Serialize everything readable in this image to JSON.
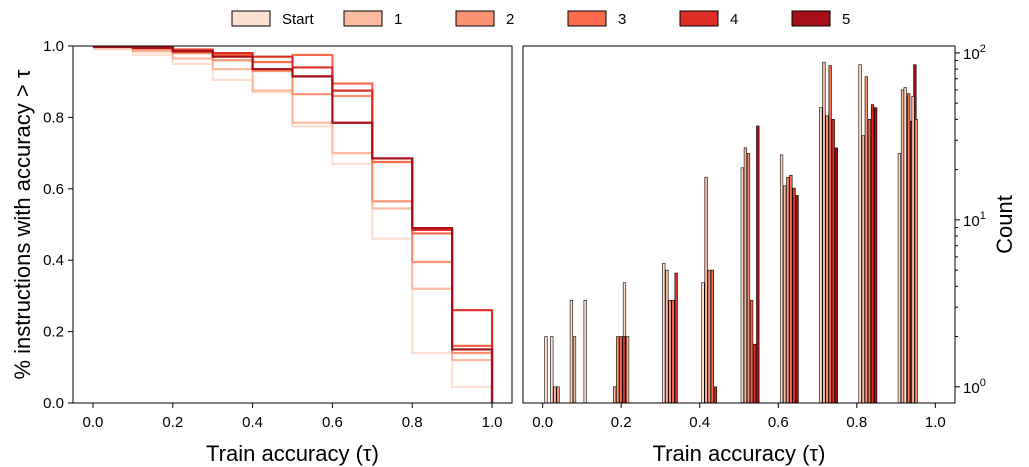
{
  "legend": {
    "entries": [
      {
        "label": "Start",
        "color": "#fee0d2"
      },
      {
        "label": "1",
        "color": "#fcbba1"
      },
      {
        "label": "2",
        "color": "#fc9272"
      },
      {
        "label": "3",
        "color": "#fb6a4a"
      },
      {
        "label": "4",
        "color": "#de2d26"
      },
      {
        "label": "5",
        "color": "#a50f15"
      }
    ],
    "placement": "top-center"
  },
  "chart_data": [
    {
      "type": "line",
      "step": true,
      "xlabel": "Train accuracy (τ)",
      "ylabel": "% instructions with accuracy > τ",
      "xlim": [
        -0.05,
        1.05
      ],
      "ylim": [
        0,
        1.0
      ],
      "xticks": [
        0.0,
        0.2,
        0.4,
        0.6,
        0.8,
        1.0
      ],
      "xtick_labels": [
        "0.0",
        "0.2",
        "0.4",
        "0.6",
        "0.8",
        "1.0"
      ],
      "yticks": [
        0.0,
        0.2,
        0.4,
        0.6,
        0.8,
        1.0
      ],
      "ytick_labels": [
        "0.0",
        "0.2",
        "0.4",
        "0.6",
        "0.8",
        "1.0"
      ],
      "grid": false,
      "x": [
        0.0,
        0.1,
        0.2,
        0.3,
        0.4,
        0.5,
        0.6,
        0.7,
        0.8,
        0.9,
        1.0
      ],
      "series": [
        {
          "name": "Start",
          "color": "#fee0d2",
          "values": [
            0.99,
            0.975,
            0.95,
            0.905,
            0.87,
            0.775,
            0.67,
            0.46,
            0.14,
            0.045,
            0.0
          ]
        },
        {
          "name": "1",
          "color": "#fcbba1",
          "values": [
            0.995,
            0.985,
            0.965,
            0.935,
            0.875,
            0.785,
            0.7,
            0.545,
            0.32,
            0.12,
            0.0
          ]
        },
        {
          "name": "2",
          "color": "#fc9272",
          "values": [
            0.998,
            0.99,
            0.98,
            0.96,
            0.93,
            0.865,
            0.86,
            0.565,
            0.395,
            0.14,
            0.0
          ]
        },
        {
          "name": "3",
          "color": "#fb6a4a",
          "values": [
            0.998,
            0.995,
            0.985,
            0.975,
            0.955,
            0.975,
            0.895,
            0.675,
            0.475,
            0.16,
            0.0
          ]
        },
        {
          "name": "4",
          "color": "#de2d26",
          "values": [
            0.998,
            0.995,
            0.99,
            0.98,
            0.97,
            0.94,
            0.875,
            0.685,
            0.485,
            0.26,
            0.0
          ]
        },
        {
          "name": "5",
          "color": "#a50f15",
          "values": [
            0.998,
            0.995,
            0.985,
            0.97,
            0.935,
            0.915,
            0.785,
            0.685,
            0.49,
            0.15,
            0.0
          ]
        }
      ]
    },
    {
      "type": "bar",
      "log_y": true,
      "xlabel": "Train accuracy (τ)",
      "ylabel": "Count",
      "xlim": [
        -0.05,
        1.05
      ],
      "ylim": [
        0.8,
        110
      ],
      "xticks": [
        0.0,
        0.2,
        0.4,
        0.6,
        0.8,
        1.0
      ],
      "xtick_labels": [
        "0.0",
        "0.2",
        "0.4",
        "0.6",
        "0.8",
        "1.0"
      ],
      "yticks": [
        1,
        10,
        100
      ],
      "ytick_labels": [
        "10^0",
        "10^1",
        "10^2"
      ],
      "grid": false,
      "bar_edge_color": "#000000",
      "bin_width": 0.1,
      "bin_starts": [
        0.0,
        0.1,
        0.2,
        0.3,
        0.4,
        0.5,
        0.6,
        0.7,
        0.8,
        0.9
      ],
      "series": [
        {
          "name": "Start",
          "color": "#fee0d2",
          "values": [
            2,
            3.3,
            4.2,
            5.5,
            4.2,
            20.5,
            24.5,
            47,
            85,
            25
          ]
        },
        {
          "name": "1",
          "color": "#fcbba1",
          "values": [
            null,
            null,
            2,
            5,
            18,
            27,
            16,
            88,
            32,
            60
          ]
        },
        {
          "name": "2",
          "color": "#fc9272",
          "values": [
            null,
            null,
            null,
            3.3,
            5,
            25,
            18,
            42,
            72,
            55
          ]
        },
        {
          "name": "3",
          "color": "#fb6a4a",
          "values": [
            null,
            null,
            null,
            3.3,
            5,
            3.3,
            18.5,
            84,
            40,
            57
          ]
        },
        {
          "name": "4",
          "color": "#de2d26",
          "values": [
            null,
            null,
            null,
            4.8,
            1,
            1.8,
            15.5,
            40,
            49,
            39
          ]
        },
        {
          "name": "5",
          "color": "#a50f15",
          "values": [
            null,
            null,
            null,
            null,
            null,
            36.5,
            14,
            27,
            47,
            85
          ]
        }
      ],
      "extra_bars": [
        {
          "x": 0.02,
          "series": [
            "Start",
            "1",
            "2"
          ],
          "values": [
            2,
            1,
            1
          ]
        },
        {
          "x": 0.07,
          "series": [
            "Start",
            "1"
          ],
          "values": [
            3.3,
            2
          ]
        },
        {
          "x": 0.18,
          "series": [
            "1",
            "2",
            "3",
            "4"
          ],
          "values": [
            1,
            2,
            2,
            2
          ]
        },
        {
          "x": 0.92,
          "series": [
            "Start"
          ],
          "values": [
            62
          ]
        },
        {
          "x": 0.94,
          "series": [
            "1",
            "2"
          ],
          "values": [
            55,
            40
          ]
        }
      ]
    }
  ]
}
